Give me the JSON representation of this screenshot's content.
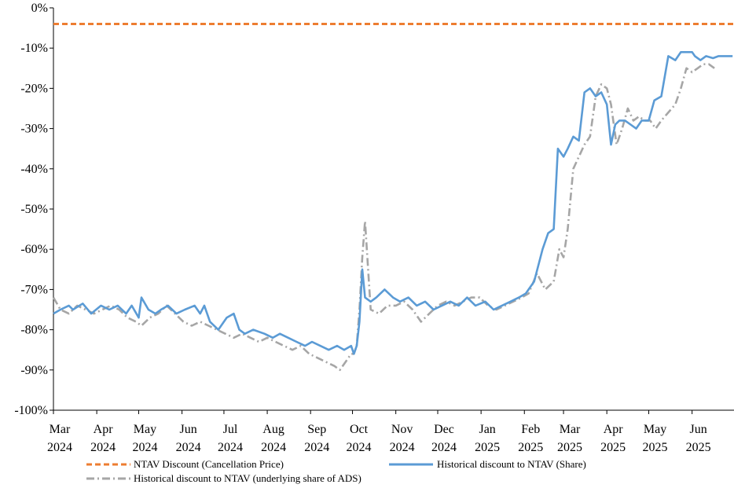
{
  "chart_data": {
    "type": "line",
    "title": "",
    "xlabel": "",
    "ylabel": "",
    "ylim": [
      -100,
      0
    ],
    "y_ticks": [
      0,
      -10,
      -20,
      -30,
      -40,
      -50,
      -60,
      -70,
      -80,
      -90,
      -100
    ],
    "y_tick_labels": [
      "0%",
      "-10%",
      "-20%",
      "-30%",
      "-40%",
      "-50%",
      "-60%",
      "-70%",
      "-80%",
      "-90%",
      "-100%"
    ],
    "x_range": [
      "2024-03-01",
      "2025-07-01"
    ],
    "x_ticks": [
      {
        "date": "2024-03-01",
        "month": "Mar",
        "year": "2024"
      },
      {
        "date": "2024-04-01",
        "month": "Apr",
        "year": "2024"
      },
      {
        "date": "2024-05-01",
        "month": "May",
        "year": "2024"
      },
      {
        "date": "2024-06-01",
        "month": "Jun",
        "year": "2024"
      },
      {
        "date": "2024-07-01",
        "month": "Jul",
        "year": "2024"
      },
      {
        "date": "2024-08-01",
        "month": "Aug",
        "year": "2024"
      },
      {
        "date": "2024-09-01",
        "month": "Sep",
        "year": "2024"
      },
      {
        "date": "2024-10-01",
        "month": "Oct",
        "year": "2024"
      },
      {
        "date": "2024-11-01",
        "month": "Nov",
        "year": "2024"
      },
      {
        "date": "2024-12-01",
        "month": "Dec",
        "year": "2024"
      },
      {
        "date": "2025-01-01",
        "month": "Jan",
        "year": "2025"
      },
      {
        "date": "2025-02-01",
        "month": "Feb",
        "year": "2025"
      },
      {
        "date": "2025-03-01",
        "month": "Mar",
        "year": "2025"
      },
      {
        "date": "2025-04-01",
        "month": "Apr",
        "year": "2025"
      },
      {
        "date": "2025-05-01",
        "month": "May",
        "year": "2025"
      },
      {
        "date": "2025-06-01",
        "month": "Jun",
        "year": "2025"
      }
    ],
    "grid": false,
    "legend_position": "bottom",
    "series": [
      {
        "name": "NTAV Discount (Cancellation Price)",
        "color": "#ED7D31",
        "style": "dashed",
        "x": [
          "2024-03-01",
          "2025-07-01"
        ],
        "y": [
          -4,
          -4
        ]
      },
      {
        "name": "Historical discount to NTAV (Share)",
        "color": "#5B9BD5",
        "style": "solid",
        "x": [
          "2024-03-01",
          "2024-03-06",
          "2024-03-12",
          "2024-03-15",
          "2024-03-22",
          "2024-03-28",
          "2024-04-04",
          "2024-04-10",
          "2024-04-16",
          "2024-04-22",
          "2024-04-26",
          "2024-05-01",
          "2024-05-03",
          "2024-05-08",
          "2024-05-13",
          "2024-05-17",
          "2024-05-22",
          "2024-05-28",
          "2024-06-03",
          "2024-06-10",
          "2024-06-14",
          "2024-06-17",
          "2024-06-21",
          "2024-06-27",
          "2024-07-03",
          "2024-07-08",
          "2024-07-12",
          "2024-07-16",
          "2024-07-22",
          "2024-07-30",
          "2024-08-05",
          "2024-08-10",
          "2024-08-16",
          "2024-08-22",
          "2024-08-28",
          "2024-09-02",
          "2024-09-08",
          "2024-09-14",
          "2024-09-20",
          "2024-09-25",
          "2024-09-30",
          "2024-10-02",
          "2024-10-04",
          "2024-10-06",
          "2024-10-08",
          "2024-10-10",
          "2024-10-14",
          "2024-10-18",
          "2024-10-24",
          "2024-10-30",
          "2024-11-04",
          "2024-11-10",
          "2024-11-16",
          "2024-11-22",
          "2024-11-28",
          "2024-12-04",
          "2024-12-10",
          "2024-12-16",
          "2024-12-22",
          "2024-12-28",
          "2025-01-04",
          "2025-01-10",
          "2025-01-16",
          "2025-01-22",
          "2025-01-28",
          "2025-02-02",
          "2025-02-08",
          "2025-02-14",
          "2025-02-18",
          "2025-02-22",
          "2025-02-25",
          "2025-03-01",
          "2025-03-04",
          "2025-03-08",
          "2025-03-12",
          "2025-03-16",
          "2025-03-20",
          "2025-03-24",
          "2025-03-28",
          "2025-04-01",
          "2025-04-04",
          "2025-04-07",
          "2025-04-10",
          "2025-04-14",
          "2025-04-18",
          "2025-04-22",
          "2025-04-26",
          "2025-05-01",
          "2025-05-05",
          "2025-05-10",
          "2025-05-15",
          "2025-05-20",
          "2025-05-24",
          "2025-05-28",
          "2025-06-01",
          "2025-06-03",
          "2025-06-07",
          "2025-06-11",
          "2025-06-16",
          "2025-06-20",
          "2025-06-25",
          "2025-06-30"
        ],
        "y": [
          -76,
          -75,
          -74,
          -75,
          -73.5,
          -76,
          -74,
          -75,
          -74,
          -76,
          -74,
          -77,
          -72,
          -75,
          -76,
          -75,
          -74,
          -76,
          -75,
          -74,
          -76,
          -74,
          -78,
          -80,
          -77,
          -76,
          -80,
          -81,
          -80,
          -81,
          -82,
          -81,
          -82,
          -83,
          -84,
          -83,
          -84,
          -85,
          -84,
          -85,
          -84,
          -86,
          -84,
          -78,
          -65,
          -72,
          -73,
          -72,
          -70,
          -72,
          -73,
          -72,
          -74,
          -73,
          -75,
          -74,
          -73,
          -74,
          -72,
          -74,
          -73,
          -75,
          -74,
          -73,
          -72,
          -71,
          -68,
          -60,
          -56,
          -55,
          -35,
          -37,
          -35,
          -32,
          -33,
          -21,
          -20,
          -22,
          -21,
          -24,
          -34,
          -29,
          -28,
          -28,
          -29,
          -30,
          -28,
          -28,
          -23,
          -22,
          -12,
          -13,
          -11,
          -11,
          -11,
          -12,
          -13,
          -12,
          -12.5,
          -12,
          -12,
          -12
        ]
      },
      {
        "name": "Historical discount to NTAV (underlying share of ADS)",
        "color": "#A6A6A6",
        "style": "dashdot",
        "x": [
          "2024-03-01",
          "2024-03-06",
          "2024-03-12",
          "2024-03-18",
          "2024-03-24",
          "2024-03-30",
          "2024-04-05",
          "2024-04-11",
          "2024-04-17",
          "2024-04-23",
          "2024-04-29",
          "2024-05-03",
          "2024-05-09",
          "2024-05-15",
          "2024-05-21",
          "2024-05-27",
          "2024-06-02",
          "2024-06-08",
          "2024-06-14",
          "2024-06-20",
          "2024-06-26",
          "2024-07-02",
          "2024-07-08",
          "2024-07-14",
          "2024-07-20",
          "2024-07-26",
          "2024-08-01",
          "2024-08-07",
          "2024-08-13",
          "2024-08-19",
          "2024-08-25",
          "2024-08-31",
          "2024-09-06",
          "2024-09-12",
          "2024-09-18",
          "2024-09-22",
          "2024-09-26",
          "2024-09-30",
          "2024-10-02",
          "2024-10-04",
          "2024-10-06",
          "2024-10-08",
          "2024-10-10",
          "2024-10-14",
          "2024-10-20",
          "2024-10-26",
          "2024-11-01",
          "2024-11-07",
          "2024-11-13",
          "2024-11-19",
          "2024-11-25",
          "2024-12-01",
          "2024-12-07",
          "2024-12-13",
          "2024-12-19",
          "2024-12-25",
          "2024-12-31",
          "2025-01-06",
          "2025-01-12",
          "2025-01-18",
          "2025-01-24",
          "2025-01-30",
          "2025-02-04",
          "2025-02-10",
          "2025-02-16",
          "2025-02-22",
          "2025-02-26",
          "2025-03-01",
          "2025-03-04",
          "2025-03-08",
          "2025-03-12",
          "2025-03-16",
          "2025-03-20",
          "2025-03-24",
          "2025-03-28",
          "2025-04-01",
          "2025-04-04",
          "2025-04-08",
          "2025-04-12",
          "2025-04-16",
          "2025-04-20",
          "2025-04-24",
          "2025-04-28",
          "2025-05-02",
          "2025-05-06",
          "2025-05-10",
          "2025-05-15",
          "2025-05-20",
          "2025-05-24",
          "2025-05-28",
          "2025-06-01",
          "2025-06-05",
          "2025-06-09",
          "2025-06-13",
          "2025-06-17"
        ],
        "y": [
          -72,
          -75,
          -76,
          -74,
          -75,
          -76,
          -75,
          -74,
          -75,
          -77,
          -78,
          -79,
          -77,
          -76,
          -74,
          -76,
          -78,
          -79,
          -78,
          -79,
          -80,
          -81,
          -82,
          -81,
          -82,
          -83,
          -82,
          -83,
          -84,
          -85,
          -84,
          -86,
          -87,
          -88,
          -89,
          -90,
          -88,
          -86,
          -86,
          -84,
          -75,
          -62,
          -53,
          -75,
          -76,
          -74,
          -74,
          -73,
          -75,
          -78,
          -76,
          -74,
          -73,
          -74,
          -73,
          -72,
          -72,
          -74,
          -75,
          -74,
          -73,
          -72,
          -71,
          -66,
          -70,
          -68,
          -60,
          -62,
          -55,
          -40,
          -37,
          -34,
          -32,
          -22,
          -19,
          -20,
          -24,
          -34,
          -30,
          -25,
          -28,
          -27,
          -28,
          -28,
          -30,
          -28,
          -26,
          -24,
          -20,
          -15,
          -16,
          -15,
          -14,
          -14,
          -15
        ]
      }
    ]
  }
}
